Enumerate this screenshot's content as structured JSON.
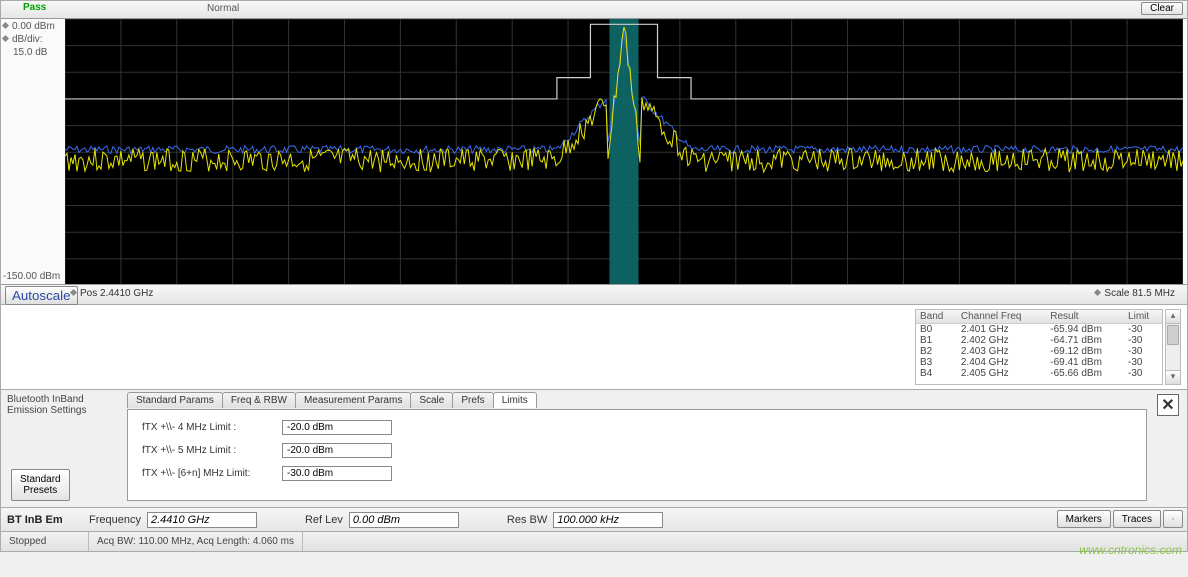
{
  "spectrum": {
    "pass_label": "Pass",
    "mode": "Normal",
    "clear_btn": "Clear",
    "ref_top_prefix": "◆",
    "ref_top": "0.00 dBm",
    "dbdiv_label": "dB/div:",
    "dbdiv_val": "15.0 dB",
    "ymin": "-150.00 dBm",
    "autoscale_btn": "Autoscale",
    "pos_label": "Pos  2.4410 GHz",
    "scale_label": "Scale  81.5 MHz",
    "plot": {
      "bg": "#000000",
      "grid_color": "#333333",
      "center_band_color": "#0f6b6b",
      "mask_line_color": "#d0d0d0",
      "trace_live_color": "#e6e600",
      "trace_max_color": "#3a6cf0",
      "xdiv": 20,
      "ydiv": 10,
      "center_band": [
        0.487,
        0.513
      ],
      "mask": [
        [
          0.0,
          0.3
        ],
        [
          0.44,
          0.3
        ],
        [
          0.44,
          0.22
        ],
        [
          0.47,
          0.22
        ],
        [
          0.47,
          0.02
        ],
        [
          0.53,
          0.02
        ],
        [
          0.53,
          0.22
        ],
        [
          0.56,
          0.22
        ],
        [
          0.56,
          0.3
        ],
        [
          1.0,
          0.3
        ]
      ]
    }
  },
  "band_table": {
    "headers": [
      "Band",
      "Channel Freq",
      "Result",
      "Limit"
    ],
    "rows": [
      [
        "B0",
        "2.401 GHz",
        "-65.94 dBm",
        "-30"
      ],
      [
        "B1",
        "2.402 GHz",
        "-64.71 dBm",
        "-30"
      ],
      [
        "B2",
        "2.403 GHz",
        "-69.12 dBm",
        "-30"
      ],
      [
        "B3",
        "2.404 GHz",
        "-69.41 dBm",
        "-30"
      ],
      [
        "B4",
        "2.405 GHz",
        "-65.66 dBm",
        "-30"
      ]
    ]
  },
  "settings": {
    "title": "Bluetooth InBand Emission Settings",
    "std_presets_btn": "Standard\nPresets",
    "tabs": [
      "Standard Params",
      "Freq & RBW",
      "Measurement Params",
      "Scale",
      "Prefs",
      "Limits"
    ],
    "active_tab": 5,
    "limits": [
      {
        "label": "fTX +\\\\- 4 MHz Limit :",
        "value": "-20.0 dBm"
      },
      {
        "label": "fTX +\\\\- 5 MHz Limit :",
        "value": "-20.0 dBm"
      },
      {
        "label": "fTX +\\\\- [6+n] MHz Limit:",
        "value": "-30.0 dBm"
      }
    ]
  },
  "param_bar": {
    "mode": "BT InB Em",
    "freq_label": "Frequency",
    "freq_val": "2.4410 GHz",
    "reflev_label": "Ref Lev",
    "reflev_val": "0.00 dBm",
    "resbw_label": "Res BW",
    "resbw_val": "100.000 kHz",
    "markers_btn": "Markers",
    "traces_btn": "Traces"
  },
  "status": {
    "state": "Stopped",
    "acq": "Acq BW: 110.00 MHz, Acq Length: 4.060 ms"
  },
  "watermark": "www.cntronics.com"
}
